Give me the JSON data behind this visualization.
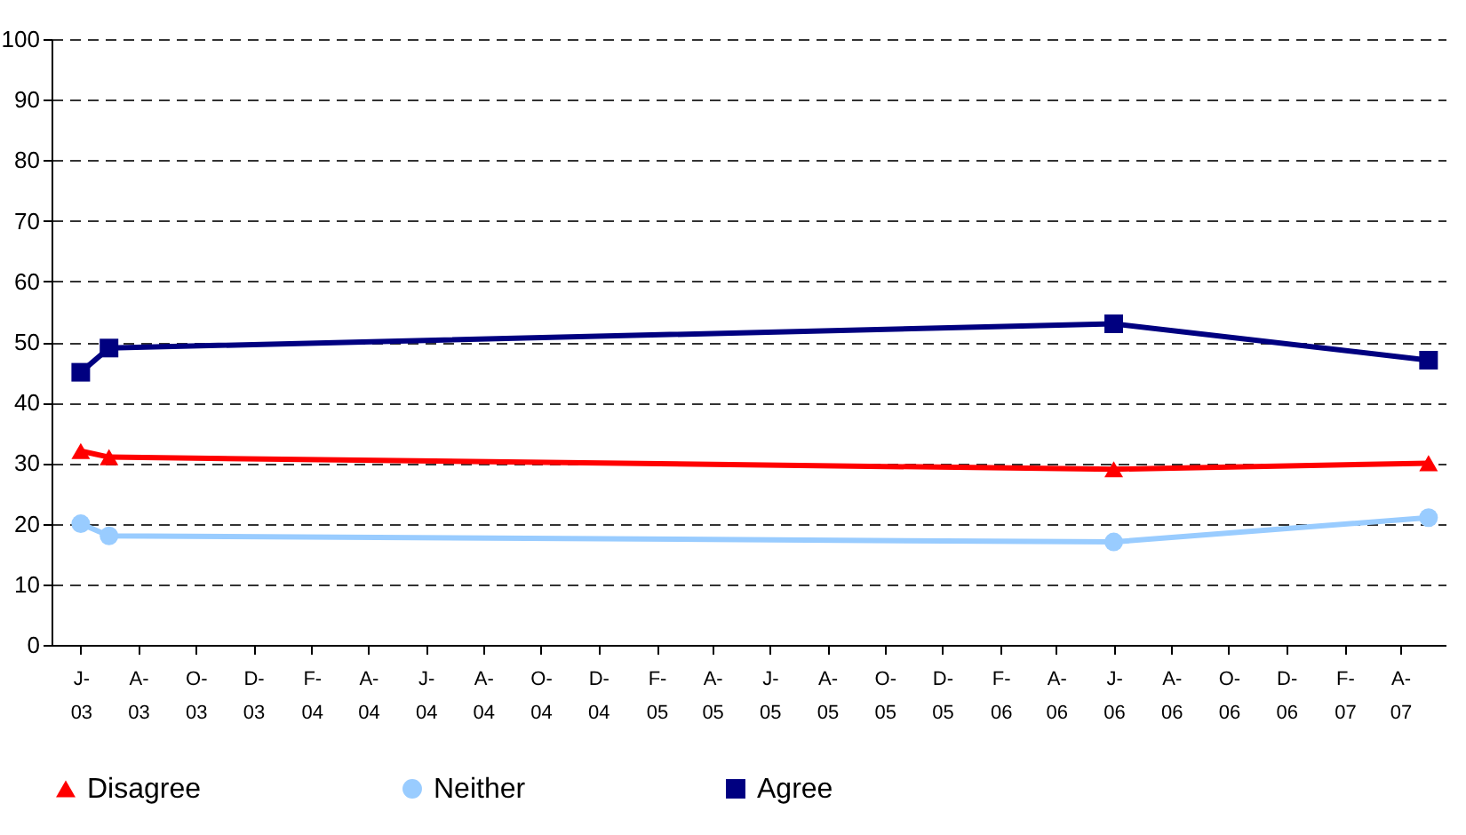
{
  "chart_data": {
    "type": "line",
    "x": [
      "2003-06",
      "2003-07",
      "2006-06",
      "2007-05"
    ],
    "xlim": [
      "2003-05",
      "2007-05-20"
    ],
    "xticks": [
      {
        "value": "2003-06",
        "label": "J-03"
      },
      {
        "value": "2003-08",
        "label": "A-03"
      },
      {
        "value": "2003-10",
        "label": "O-03"
      },
      {
        "value": "2003-12",
        "label": "D-03"
      },
      {
        "value": "2004-02",
        "label": "F-04"
      },
      {
        "value": "2004-04",
        "label": "A-04"
      },
      {
        "value": "2004-06",
        "label": "J-04"
      },
      {
        "value": "2004-08",
        "label": "A-04"
      },
      {
        "value": "2004-10",
        "label": "O-04"
      },
      {
        "value": "2004-12",
        "label": "D-04"
      },
      {
        "value": "2005-02",
        "label": "F-05"
      },
      {
        "value": "2005-04",
        "label": "A-05"
      },
      {
        "value": "2005-06",
        "label": "J-05"
      },
      {
        "value": "2005-08",
        "label": "A-05"
      },
      {
        "value": "2005-10",
        "label": "O-05"
      },
      {
        "value": "2005-12",
        "label": "D-05"
      },
      {
        "value": "2006-02",
        "label": "F-06"
      },
      {
        "value": "2006-04",
        "label": "A-06"
      },
      {
        "value": "2006-06",
        "label": "J-06"
      },
      {
        "value": "2006-08",
        "label": "A-06"
      },
      {
        "value": "2006-10",
        "label": "O-06"
      },
      {
        "value": "2006-12",
        "label": "D-06"
      },
      {
        "value": "2007-02",
        "label": "F-07"
      },
      {
        "value": "2007-04",
        "label": "A-07"
      }
    ],
    "ylim": [
      0,
      100
    ],
    "yticks": [
      0,
      10,
      20,
      30,
      40,
      50,
      60,
      70,
      80,
      90,
      100
    ],
    "grid": "y",
    "legend": "bottom",
    "line_style": "solid",
    "series": [
      {
        "name": "Disagree",
        "color": "#ff0000",
        "marker": "triangle",
        "values": [
          32,
          31,
          29,
          30
        ]
      },
      {
        "name": "Neither",
        "color": "#99ccff",
        "marker": "circle",
        "values": [
          20,
          18,
          17,
          21
        ]
      },
      {
        "name": "Agree",
        "color": "#000080",
        "marker": "square",
        "values": [
          45,
          49,
          53,
          47
        ]
      }
    ]
  }
}
